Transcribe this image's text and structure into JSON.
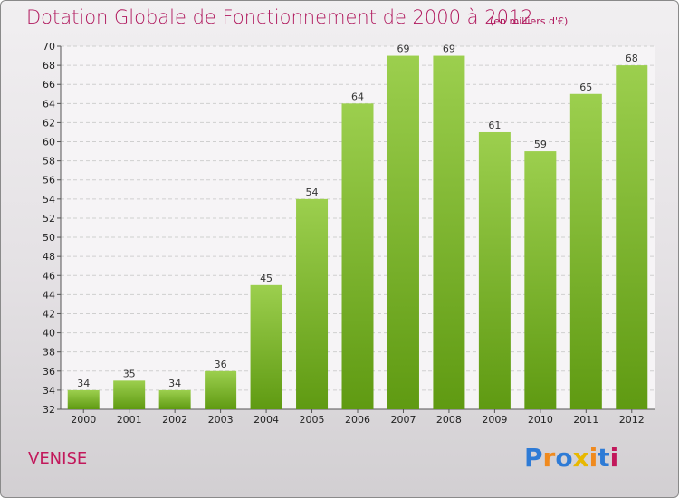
{
  "header": {
    "title": "Dotation Globale de Fonctionnement de 2000 à 2012",
    "subtitle": "(en milliers d'€)"
  },
  "footer": {
    "commune": "VENISE",
    "logo_text": "Proxiti"
  },
  "colors": {
    "bar_light": "#9ccf4e",
    "bar_dark": "#5f9a12",
    "title": "#b0185d",
    "logo": [
      "#2e7bd6",
      "#f08a1e",
      "#2e7bd6",
      "#e8b800",
      "#f08a1e",
      "#2e7bd6",
      "#c2185b"
    ]
  },
  "chart_data": {
    "type": "bar",
    "categories": [
      "2000",
      "2001",
      "2002",
      "2003",
      "2004",
      "2005",
      "2006",
      "2007",
      "2008",
      "2009",
      "2010",
      "2011",
      "2012"
    ],
    "values": [
      34,
      35,
      34,
      36,
      45,
      54,
      64,
      69,
      69,
      61,
      59,
      65,
      68
    ],
    "ylim": [
      32,
      70
    ],
    "yticks": [
      32,
      34,
      36,
      38,
      40,
      42,
      44,
      46,
      48,
      50,
      52,
      54,
      56,
      58,
      60,
      62,
      64,
      66,
      68,
      70
    ],
    "grid": true,
    "xlabel": "",
    "ylabel": ""
  }
}
